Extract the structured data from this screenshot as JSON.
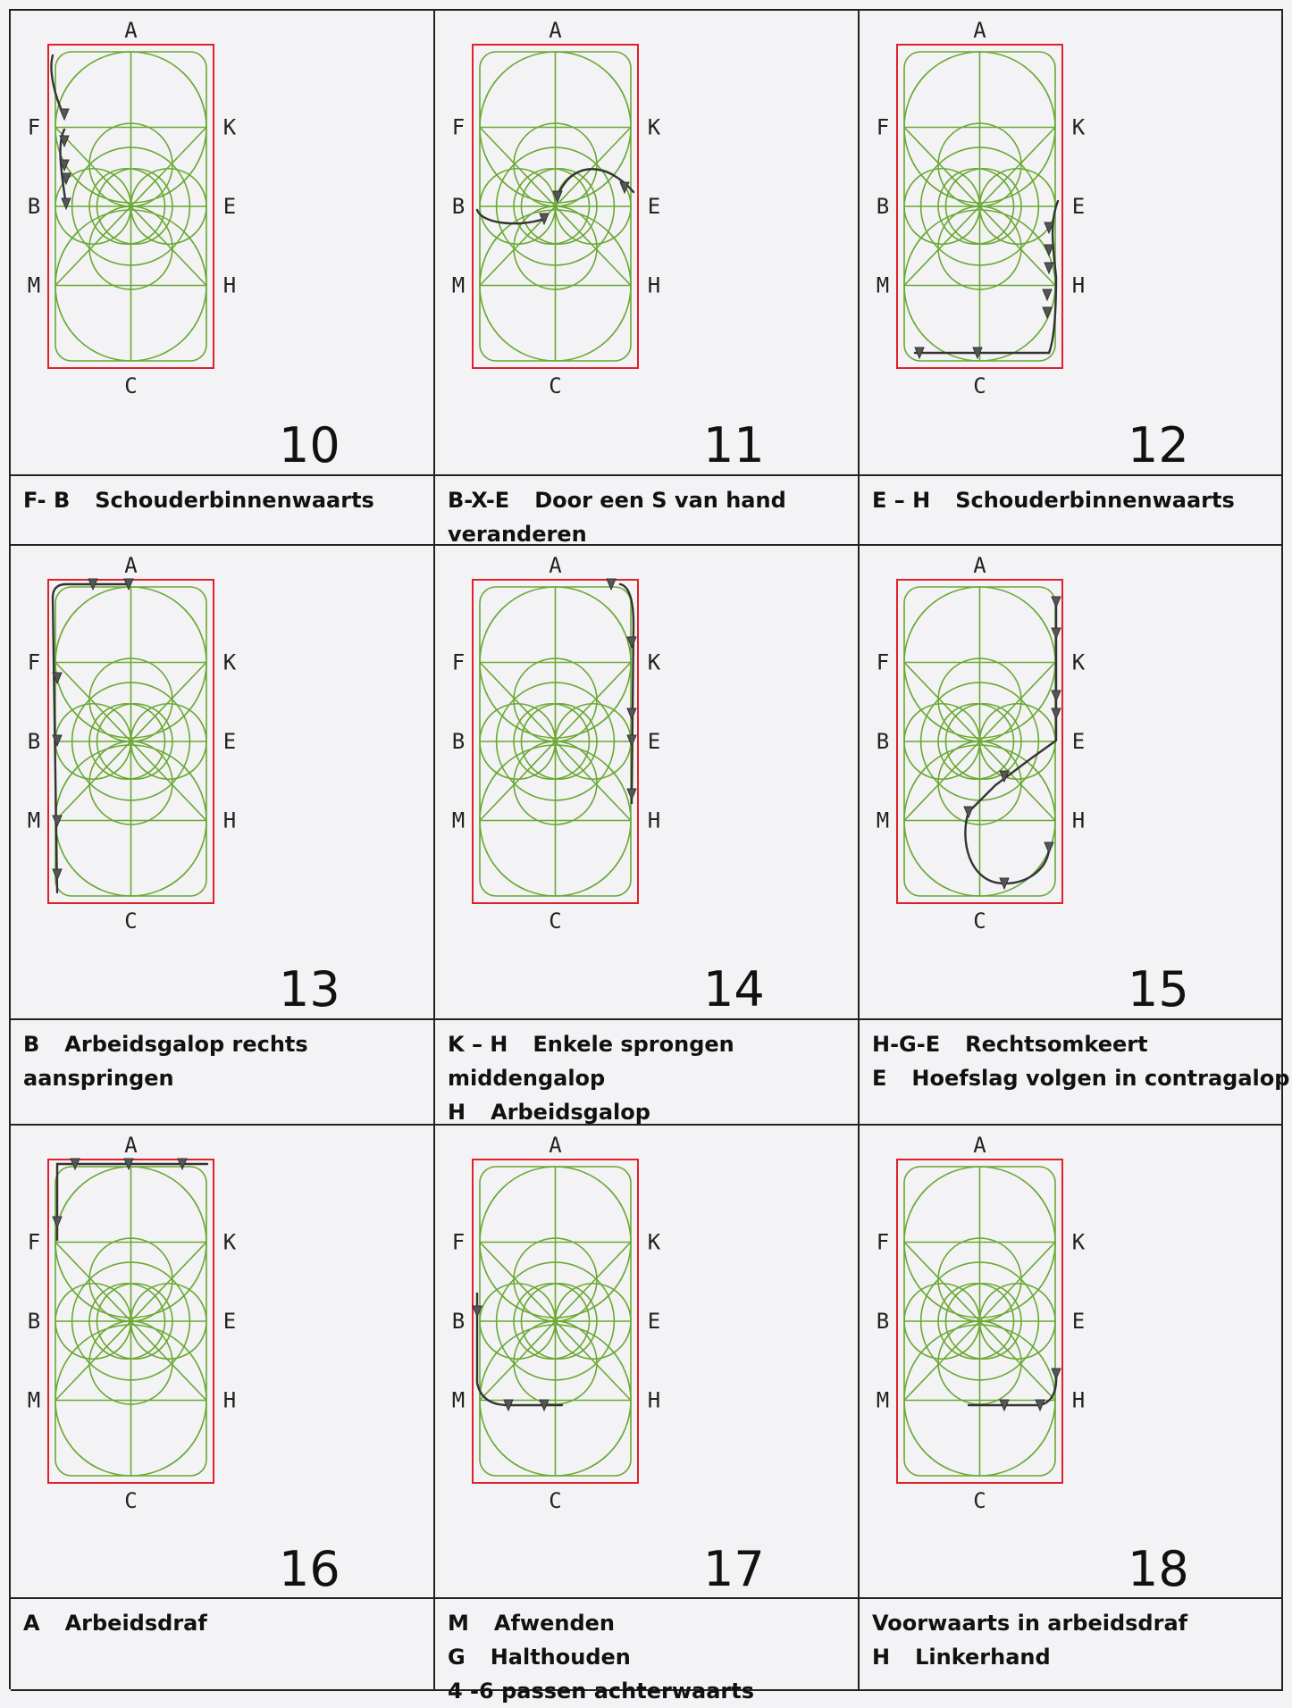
{
  "colors": {
    "arena_border": "#e0202a",
    "lines": "#6aa832",
    "ink": "#333333"
  },
  "arena_letters": {
    "top": "A",
    "bottom": "C",
    "left": [
      "F",
      "B",
      "M"
    ],
    "right": [
      "K",
      "E",
      "H"
    ]
  },
  "figures": [
    {
      "number": "10",
      "lines": [
        {
          "code": "F- B",
          "text": "Schouderbinnenwaarts"
        }
      ]
    },
    {
      "number": "11",
      "lines": [
        {
          "code": "B-X-E",
          "text": "Door een S van hand"
        },
        {
          "code": "",
          "text": "veranderen"
        }
      ]
    },
    {
      "number": "12",
      "lines": [
        {
          "code": "E – H",
          "text": "Schouderbinnenwaarts"
        }
      ]
    },
    {
      "number": "13",
      "lines": [
        {
          "code": "B",
          "text": "Arbeidsgalop rechts"
        },
        {
          "code": "",
          "text": "aanspringen"
        }
      ]
    },
    {
      "number": "14",
      "lines": [
        {
          "code": "K – H",
          "text": "Enkele sprongen"
        },
        {
          "code": "",
          "text": "middengalop"
        },
        {
          "code": "H",
          "text": "Arbeidsgalop"
        }
      ]
    },
    {
      "number": "15",
      "lines": [
        {
          "code": "H-G-E",
          "text": "Rechtsomkeert"
        },
        {
          "code": "E",
          "text": "Hoefslag volgen in contragalop"
        }
      ]
    },
    {
      "number": "16",
      "lines": [
        {
          "code": "A",
          "text": "Arbeidsdraf"
        }
      ]
    },
    {
      "number": "17",
      "lines": [
        {
          "code": "M",
          "text": "Afwenden"
        },
        {
          "code": "G",
          "text": "Halthouden"
        },
        {
          "code": "",
          "text": "4 -6 passen achterwaarts"
        }
      ]
    },
    {
      "number": "18",
      "lines": [
        {
          "code": "",
          "text": "Voorwaarts in arbeidsdraf"
        },
        {
          "code": "H",
          "text": "Linkerhand"
        }
      ]
    }
  ]
}
